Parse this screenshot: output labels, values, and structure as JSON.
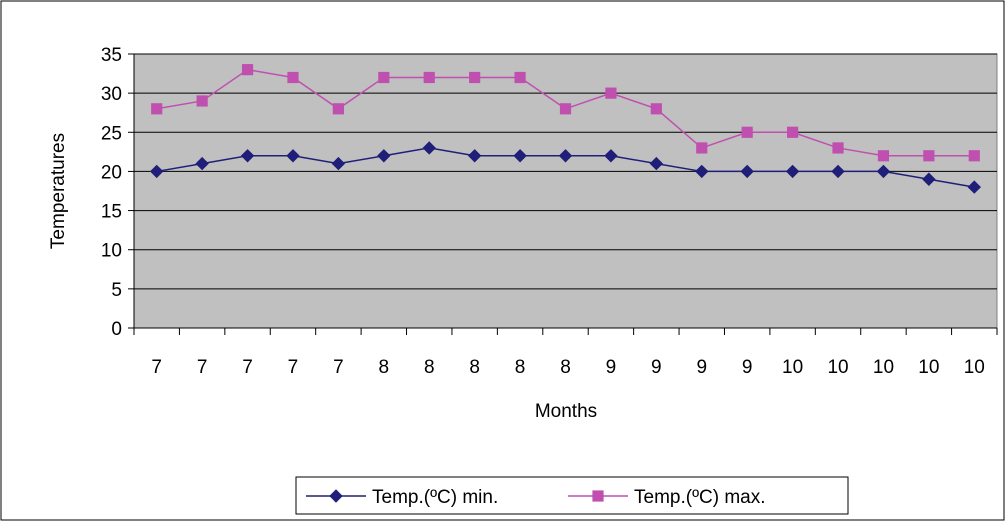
{
  "chart_data": {
    "type": "line",
    "title": "",
    "xlabel": "Months",
    "ylabel": "Temperatures",
    "categories": [
      "7",
      "7",
      "7",
      "7",
      "7",
      "8",
      "8",
      "8",
      "8",
      "8",
      "9",
      "9",
      "9",
      "9",
      "10",
      "10",
      "10",
      "10",
      "10"
    ],
    "ylim": [
      0,
      35
    ],
    "yticks": [
      "0",
      "5",
      "10",
      "15",
      "20",
      "25",
      "30",
      "35"
    ],
    "grid": true,
    "legend_position": "bottom",
    "series": [
      {
        "name": "Temp.(ºC) min.",
        "color": "#1f1f7a",
        "marker": "diamond",
        "values": [
          20,
          21,
          22,
          22,
          21,
          22,
          23,
          22,
          22,
          22,
          22,
          21,
          20,
          20,
          20,
          20,
          20,
          19,
          18
        ]
      },
      {
        "name": "Temp.(ºC) max.",
        "color": "#c050b0",
        "marker": "square",
        "values": [
          28,
          29,
          33,
          32,
          28,
          32,
          32,
          32,
          32,
          28,
          30,
          28,
          23,
          25,
          25,
          23,
          22,
          22,
          22
        ]
      }
    ],
    "plot_background": "#c0c0c0"
  }
}
